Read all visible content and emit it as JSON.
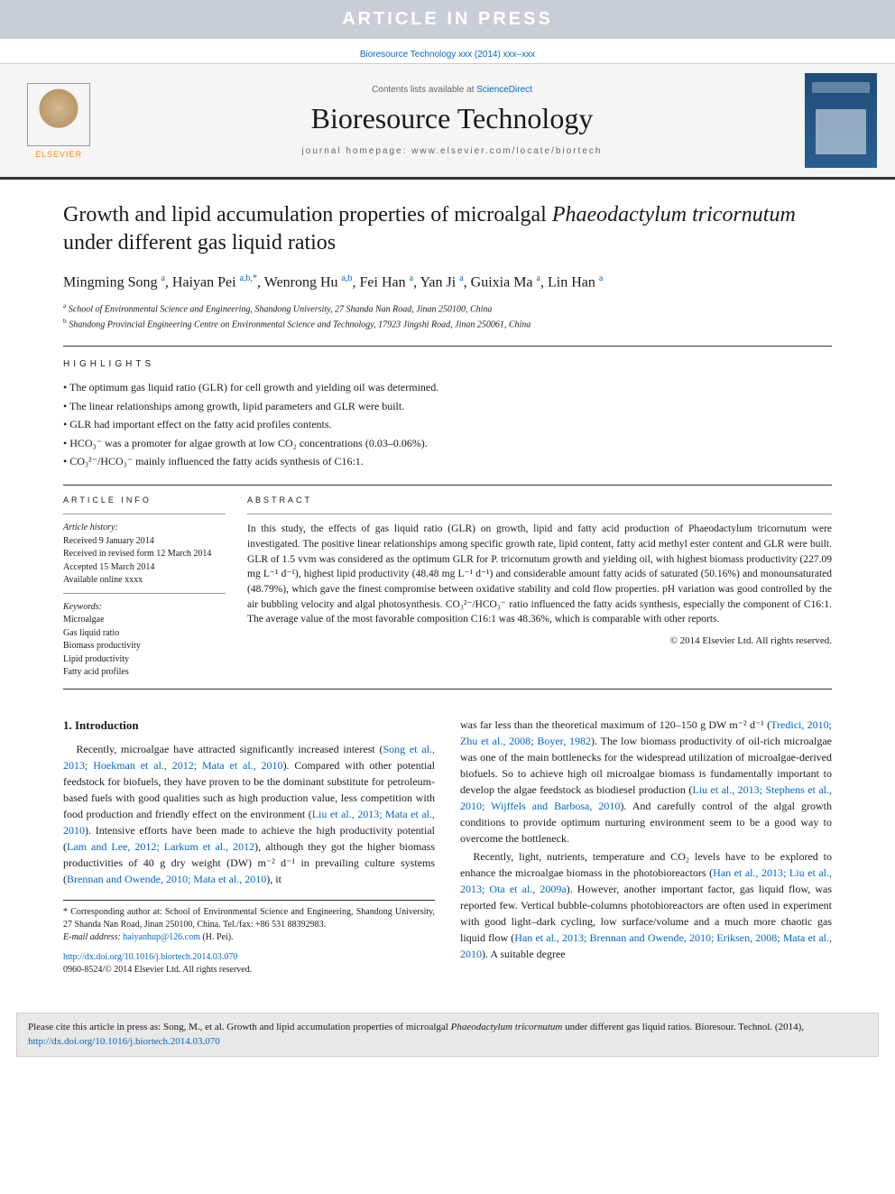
{
  "banner": {
    "text": "ARTICLE IN PRESS"
  },
  "top_citation": "Bioresource Technology xxx (2014) xxx–xxx",
  "masthead": {
    "elsevier": "ELSEVIER",
    "contents_prefix": "Contents lists available at ",
    "contents_link": "ScienceDirect",
    "journal_name": "Bioresource Technology",
    "homepage_label": "journal homepage: www.elsevier.com/locate/biortech"
  },
  "title_part1": "Growth and lipid accumulation properties of microalgal ",
  "title_em": "Phaeodactylum tricornutum",
  "title_part2": " under different gas liquid ratios",
  "authors_html": "Mingming Song <sup>a</sup>, Haiyan Pei <sup>a,b,*</sup>, Wenrong Hu <sup>a,b</sup>, Fei Han <sup>a</sup>, Yan Ji <sup>a</sup>, Guixia Ma <sup>a</sup>, Lin Han <sup>a</sup>",
  "affiliations": {
    "a": "School of Environmental Science and Engineering, Shandong University, 27 Shanda Nan Road, Jinan 250100, China",
    "b": "Shandong Provincial Engineering Centre on Environmental Science and Technology, 17923 Jingshi Road, Jinan 250061, China"
  },
  "highlights_label": "HIGHLIGHTS",
  "highlights": [
    "The optimum gas liquid ratio (GLR) for cell growth and yielding oil was determined.",
    "The linear relationships among growth, lipid parameters and GLR were built.",
    "GLR had important effect on the fatty acid profiles contents.",
    "HCO₃⁻ was a promoter for algae growth at low CO₂ concentrations (0.03–0.06%).",
    "CO₃²⁻/HCO₃⁻ mainly influenced the fatty acids synthesis of C16:1."
  ],
  "article_info": {
    "label": "ARTICLE INFO",
    "history_label": "Article history:",
    "history": [
      "Received 9 January 2014",
      "Received in revised form 12 March 2014",
      "Accepted 15 March 2014",
      "Available online xxxx"
    ],
    "keywords_label": "Keywords:",
    "keywords": [
      "Microalgae",
      "Gas liquid ratio",
      "Biomass productivity",
      "Lipid productivity",
      "Fatty acid profiles"
    ]
  },
  "abstract": {
    "label": "ABSTRACT",
    "text": "In this study, the effects of gas liquid ratio (GLR) on growth, lipid and fatty acid production of Phaeodactylum tricornutum were investigated. The positive linear relationships among specific growth rate, lipid content, fatty acid methyl ester content and GLR were built. GLR of 1.5 vvm was considered as the optimum GLR for P. tricornutum growth and yielding oil, with highest biomass productivity (227.09 mg L⁻¹ d⁻¹), highest lipid productivity (48.48 mg L⁻¹ d⁻¹) and considerable amount fatty acids of saturated (50.16%) and monounsaturated (48.79%), which gave the finest compromise between oxidative stability and cold flow properties. pH variation was good controlled by the air bubbling velocity and algal photosynthesis. CO₃²⁻/HCO₃⁻ ratio influenced the fatty acids synthesis, especially the component of C16:1. The average value of the most favorable composition C16:1 was 48.36%, which is comparable with other reports.",
    "copyright": "© 2014 Elsevier Ltd. All rights reserved."
  },
  "introduction": {
    "heading": "1. Introduction",
    "p1_a": "Recently, microalgae have attracted significantly increased interest (",
    "p1_link1": "Song et al., 2013; Hoekman et al., 2012; Mata et al., 2010",
    "p1_b": "). Compared with other potential feedstock for biofuels, they have proven to be the dominant substitute for petroleum-based fuels with good qualities such as high production value, less competition with food production and friendly effect on the environment (",
    "p1_link2": "Liu et al., 2013; Mata et al., 2010",
    "p1_c": "). Intensive efforts have been made to achieve the high productivity potential (",
    "p1_link3": "Lam and Lee, 2012; Larkum et al., 2012",
    "p1_d": "), although they got the higher biomass productivities of 40 g dry weight (DW) m⁻² d⁻¹ in prevailing culture systems (",
    "p1_link4": "Brennan and Owende, 2010; Mata et al., 2010",
    "p1_e": "), it ",
    "p1_f": "was far less than the theoretical maximum of 120–150 g DW m⁻² d⁻¹ (",
    "p1_link5": "Tredici, 2010; Zhu et al., 2008; Boyer, 1982",
    "p1_g": "). The low biomass productivity of oil-rich microalgae was one of the main bottlenecks for the widespread utilization of microalgae-derived biofuels. So to achieve high oil microalgae biomass is fundamentally important to develop the algae feedstock as biodiesel production (",
    "p1_link6": "Liu et al., 2013; Stephens et al., 2010; Wijffels and Barbosa, 2010",
    "p1_h": "). And carefully control of the algal growth conditions to provide optimum nurturing environment seem to be a good way to overcome the bottleneck.",
    "p2_a": "Recently, light, nutrients, temperature and CO₂ levels have to be explored to enhance the microalgae biomass in the photobioreactors (",
    "p2_link1": "Han et al., 2013; Liu et al., 2013; Ota et al., 2009a",
    "p2_b": "). However, another important factor, gas liquid flow, was reported few. Vertical bubble-columns photobioreactors are often used in experiment with good light–dark cycling, low surface/volume and a much more chaotic gas liquid flow (",
    "p2_link2": "Han et al., 2013; Brennan and Owende, 2010; Eriksen, 2008; Mata et al., 2010",
    "p2_c": "). A suitable degree"
  },
  "footnotes": {
    "corr": "* Corresponding author at: School of Environmental Science and Engineering, Shandong University, 27 Shanda Nan Road, Jinan 250100, China. Tel./fax: +86 531 88392983.",
    "email_label": "E-mail address: ",
    "email": "haiyanhup@126.com",
    "email_who": " (H. Pei)."
  },
  "doi": {
    "link": "http://dx.doi.org/10.1016/j.biortech.2014.03.070",
    "issn_line": "0960-8524/© 2014 Elsevier Ltd. All rights reserved."
  },
  "cite_box": {
    "prefix": "Please cite this article in press as: Song, M., et al. Growth and lipid accumulation properties of microalgal ",
    "em": "Phaeodactylum tricornutum",
    "mid": " under different gas liquid ratios. Bioresour. Technol. (2014), ",
    "link": "http://dx.doi.org/10.1016/j.biortech.2014.03.070"
  },
  "colors": {
    "banner_bg": "#c8ced5",
    "link": "#0066cc",
    "elsevier_orange": "#ff8c00",
    "cover_blue": "#1e4d7b"
  }
}
